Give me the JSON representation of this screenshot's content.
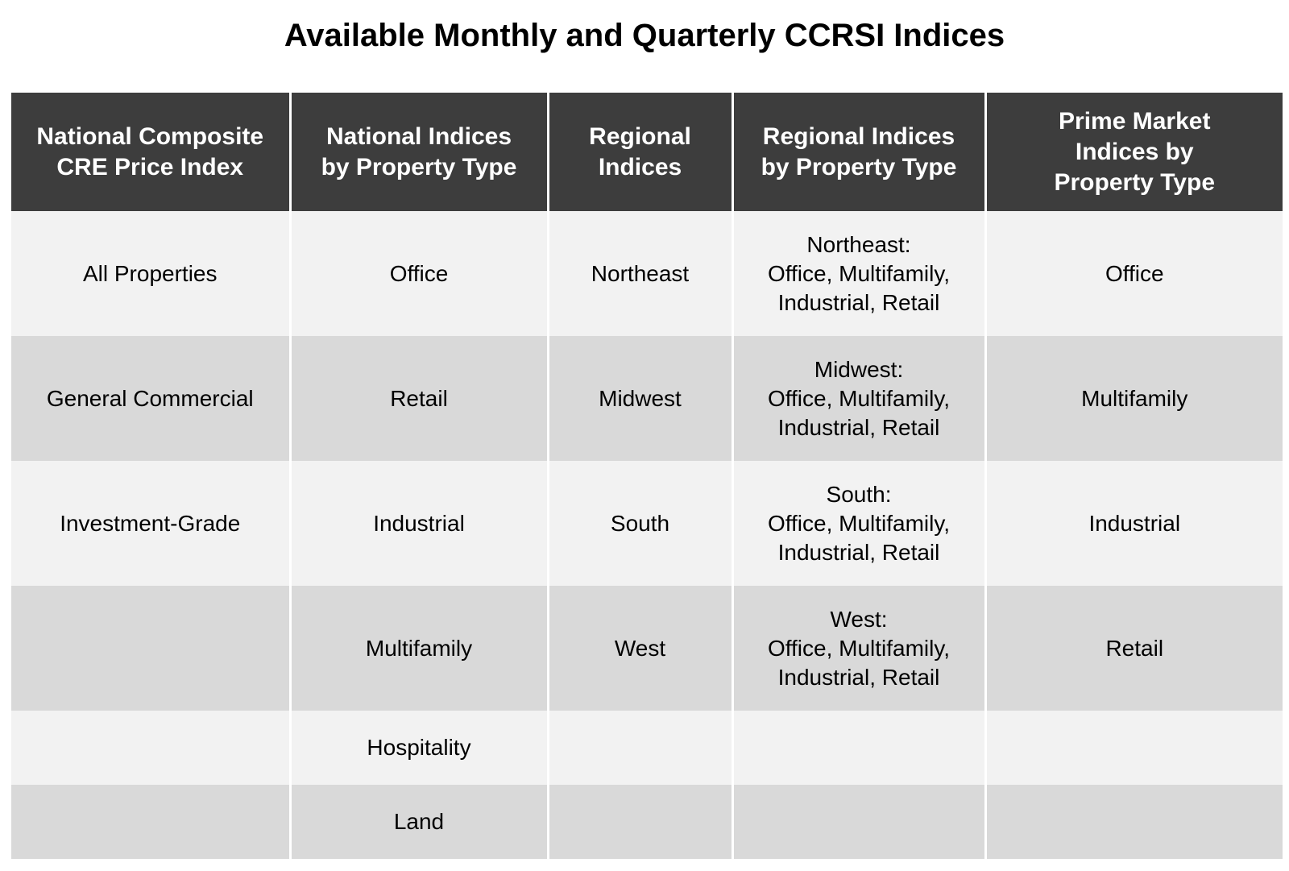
{
  "title": "Available Monthly and Quarterly CCRSI Indices",
  "colors": {
    "header_bg": "#3d3d3d",
    "header_text": "#ffffff",
    "row_light": "#f2f2f2",
    "row_dark": "#d9d9d9"
  },
  "table": {
    "headers": [
      [
        "National Composite",
        "CRE Price Index"
      ],
      [
        "National Indices",
        "by Property Type"
      ],
      [
        "Regional",
        "Indices"
      ],
      [
        "Regional Indices",
        "by Property Type"
      ],
      [
        "Prime Market",
        "Indices by",
        "Property Type"
      ]
    ],
    "rows": [
      [
        [
          "All Properties"
        ],
        [
          "Office"
        ],
        [
          "Northeast"
        ],
        [
          "Northeast:",
          "Office, Multifamily,",
          "Industrial, Retail"
        ],
        [
          "Office"
        ]
      ],
      [
        [
          "General Commercial"
        ],
        [
          "Retail"
        ],
        [
          "Midwest"
        ],
        [
          "Midwest:",
          "Office, Multifamily,",
          "Industrial, Retail"
        ],
        [
          "Multifamily"
        ]
      ],
      [
        [
          "Investment-Grade"
        ],
        [
          "Industrial"
        ],
        [
          "South"
        ],
        [
          "South:",
          "Office, Multifamily,",
          "Industrial, Retail"
        ],
        [
          "Industrial"
        ]
      ],
      [
        [
          ""
        ],
        [
          "Multifamily"
        ],
        [
          "West"
        ],
        [
          "West:",
          "Office, Multifamily,",
          "Industrial, Retail"
        ],
        [
          "Retail"
        ]
      ],
      [
        [
          ""
        ],
        [
          "Hospitality"
        ],
        [
          ""
        ],
        [
          ""
        ],
        [
          ""
        ]
      ],
      [
        [
          ""
        ],
        [
          "Land"
        ],
        [
          ""
        ],
        [
          ""
        ],
        [
          ""
        ]
      ]
    ]
  }
}
